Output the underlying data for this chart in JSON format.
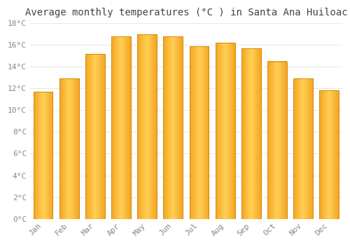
{
  "title": "Average monthly temperatures (°C ) in Santa Ana Huiloac",
  "months": [
    "Jan",
    "Feb",
    "Mar",
    "Apr",
    "May",
    "Jun",
    "Jul",
    "Aug",
    "Sep",
    "Oct",
    "Nov",
    "Dec"
  ],
  "temperatures": [
    11.7,
    12.9,
    15.2,
    16.8,
    17.0,
    16.8,
    15.9,
    16.2,
    15.7,
    14.5,
    12.9,
    11.8
  ],
  "bar_color_left": "#F5A623",
  "bar_color_center": "#FFD055",
  "bar_color_right": "#F5A623",
  "bar_border_color": "#D4890A",
  "ylim": [
    0,
    18
  ],
  "ytick_step": 2,
  "background_color": "#ffffff",
  "grid_color": "#e8e8e8",
  "title_fontsize": 10,
  "tick_fontsize": 8,
  "tick_color": "#888888",
  "font_family": "monospace"
}
